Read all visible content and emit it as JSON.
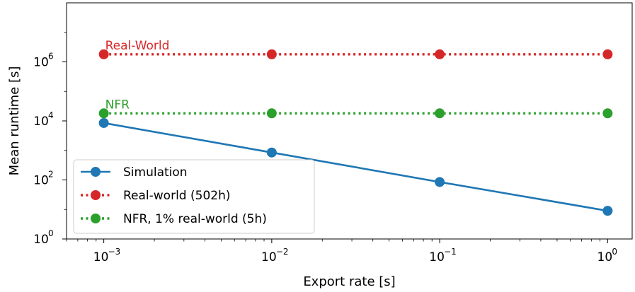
{
  "chart_data": {
    "type": "line",
    "xlabel": "Export rate [s]",
    "ylabel": "Mean runtime [s]",
    "x_scale": "log",
    "y_scale": "log",
    "xlim": [
      0.0006,
      1.4
    ],
    "ylim": [
      1,
      100000000
    ],
    "x_ticks": [
      {
        "value": 0.001,
        "base": "10",
        "exp": "−3"
      },
      {
        "value": 0.01,
        "base": "10",
        "exp": "−2"
      },
      {
        "value": 0.1,
        "base": "10",
        "exp": "−1"
      },
      {
        "value": 1,
        "base": "10",
        "exp": "0"
      }
    ],
    "y_ticks": [
      {
        "value": 1,
        "base": "10",
        "exp": "0"
      },
      {
        "value": 100,
        "base": "10",
        "exp": "2"
      },
      {
        "value": 10000,
        "base": "10",
        "exp": "4"
      },
      {
        "value": 1000000,
        "base": "10",
        "exp": "6"
      }
    ],
    "x": [
      0.001,
      0.01,
      0.1,
      1
    ],
    "series": [
      {
        "name": "Simulation",
        "values": [
          8500,
          850,
          85,
          9
        ],
        "color": "#1f77b4",
        "style": "solid"
      },
      {
        "name": "Real-world (502h)",
        "values": [
          1807200,
          1807200,
          1807200,
          1807200
        ],
        "color": "#d62728",
        "style": "dotted"
      },
      {
        "name": "NFR, 1% real-world (5h)",
        "values": [
          18072,
          18072,
          18072,
          18072
        ],
        "color": "#2ca02c",
        "style": "dotted"
      }
    ],
    "annotations": [
      {
        "text": "Real-World",
        "x": 0.001,
        "y": 1807200,
        "color": "#d62728"
      },
      {
        "text": "NFR",
        "x": 0.001,
        "y": 18072,
        "color": "#2ca02c"
      }
    ],
    "legend_position": "lower-left",
    "grid": false
  }
}
